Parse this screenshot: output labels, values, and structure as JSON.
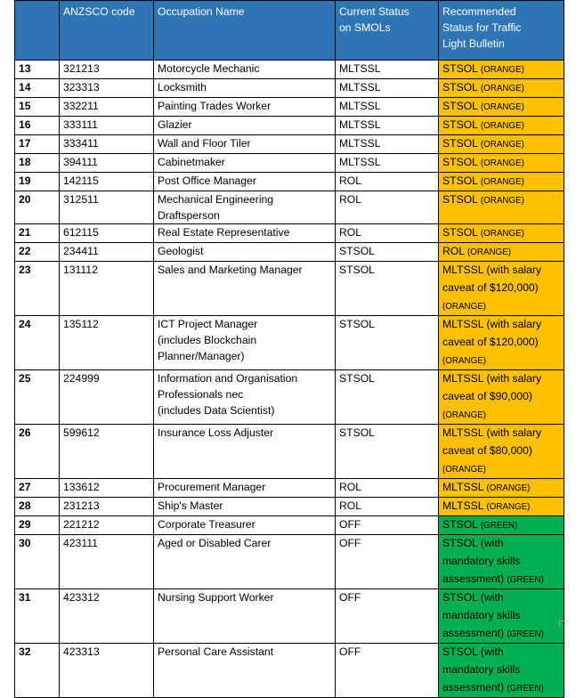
{
  "headers": {
    "num": "",
    "code": "ANZSCO code",
    "name": "Occupation Name",
    "current": [
      "Current Status",
      "on SMOLs"
    ],
    "recommended": [
      "Recommended",
      "Status for Traffic",
      "Light Bulletin"
    ]
  },
  "colors": {
    "header_bg": "#2e75b6",
    "orange": "#ffc000",
    "green": "#00b050"
  },
  "rows": [
    {
      "num": "13",
      "code": "321213",
      "name": [
        "Motorcycle Mechanic"
      ],
      "current": "MLTSSL",
      "rec": [
        [
          "STSOL ",
          "(ORANGE)"
        ]
      ],
      "color": "orange"
    },
    {
      "num": "14",
      "code": "323313",
      "name": [
        "Locksmith"
      ],
      "current": "MLTSSL",
      "rec": [
        [
          "STSOL ",
          "(ORANGE)"
        ]
      ],
      "color": "orange"
    },
    {
      "num": "15",
      "code": "332211",
      "name": [
        "Painting Trades Worker"
      ],
      "current": "MLTSSL",
      "rec": [
        [
          "STSOL ",
          "(ORANGE)"
        ]
      ],
      "color": "orange"
    },
    {
      "num": "16",
      "code": "333111",
      "name": [
        "Glazier"
      ],
      "current": "MLTSSL",
      "rec": [
        [
          "STSOL ",
          "(ORANGE)"
        ]
      ],
      "color": "orange"
    },
    {
      "num": "17",
      "code": "333411",
      "name": [
        "Wall and Floor Tiler"
      ],
      "current": "MLTSSL",
      "rec": [
        [
          "STSOL ",
          "(ORANGE)"
        ]
      ],
      "color": "orange"
    },
    {
      "num": "18",
      "code": "394111",
      "name": [
        "Cabinetmaker"
      ],
      "current": "MLTSSL",
      "rec": [
        [
          "STSOL ",
          "(ORANGE)"
        ]
      ],
      "color": "orange"
    },
    {
      "num": "19",
      "code": "142115",
      "name": [
        "Post Office Manager"
      ],
      "current": "ROL",
      "rec": [
        [
          "STSOL ",
          "(ORANGE)"
        ]
      ],
      "color": "orange"
    },
    {
      "num": "20",
      "code": "312511",
      "name": [
        "Mechanical Engineering",
        "Draftsperson"
      ],
      "current": "ROL",
      "rec": [
        [
          "STSOL ",
          "(ORANGE)"
        ]
      ],
      "color": "orange"
    },
    {
      "num": "21",
      "code": "612115",
      "name": [
        "Real Estate Representative"
      ],
      "current": "ROL",
      "rec": [
        [
          "STSOL ",
          "(ORANGE)"
        ]
      ],
      "color": "orange"
    },
    {
      "num": "22",
      "code": "234411",
      "name": [
        "Geologist"
      ],
      "current": "STSOL",
      "rec": [
        [
          "ROL ",
          "(ORANGE)"
        ]
      ],
      "color": "orange"
    },
    {
      "num": "23",
      "code": "131112",
      "name": [
        "Sales and Marketing Manager"
      ],
      "current": "STSOL",
      "rec": [
        [
          "MLTSSL (with salary",
          ""
        ],
        [
          "caveat of $120,000)",
          ""
        ],
        [
          "",
          "(ORANGE)"
        ]
      ],
      "color": "orange"
    },
    {
      "num": "24",
      "code": "135112",
      "name": [
        "ICT Project Manager",
        "(includes Blockchain",
        "Planner/Manager)"
      ],
      "current": "STSOL",
      "rec": [
        [
          "MLTSSL (with salary",
          ""
        ],
        [
          "caveat of $120,000)",
          ""
        ],
        [
          "",
          "(ORANGE)"
        ]
      ],
      "color": "orange"
    },
    {
      "num": "25",
      "code": "224999",
      "name": [
        "Information and Organisation",
        "Professionals nec",
        "(includes Data Scientist)"
      ],
      "current": "STSOL",
      "rec": [
        [
          "MLTSSL (with salary",
          ""
        ],
        [
          "caveat of $90,000)",
          ""
        ],
        [
          "",
          "(ORANGE)"
        ]
      ],
      "color": "orange"
    },
    {
      "num": "26",
      "code": "599612",
      "name": [
        "Insurance Loss Adjuster"
      ],
      "current": "STSOL",
      "rec": [
        [
          "MLTSSL (with salary",
          ""
        ],
        [
          "caveat of $80,000)",
          ""
        ],
        [
          "",
          "(ORANGE)"
        ]
      ],
      "color": "orange"
    },
    {
      "num": "27",
      "code": "133612",
      "name": [
        "Procurement Manager"
      ],
      "current": "ROL",
      "rec": [
        [
          "MLTSSL ",
          "(ORANGE)"
        ]
      ],
      "color": "orange"
    },
    {
      "num": "28",
      "code": "231213",
      "name": [
        "Ship's Master"
      ],
      "current": "ROL",
      "rec": [
        [
          "MLTSSL ",
          "(ORANGE)"
        ]
      ],
      "color": "orange"
    },
    {
      "num": "29",
      "code": "221212",
      "name": [
        "Corporate Treasurer"
      ],
      "current": "OFF",
      "rec": [
        [
          "STSOL ",
          "(GREEN)"
        ]
      ],
      "color": "green"
    },
    {
      "num": "30",
      "code": "423111",
      "name": [
        "Aged or Disabled Carer"
      ],
      "current": "OFF",
      "rec": [
        [
          "STSOL (with",
          ""
        ],
        [
          "mandatory skills",
          ""
        ],
        [
          "assessment) ",
          "(GREEN)"
        ]
      ],
      "color": "green"
    },
    {
      "num": "31",
      "code": "423312",
      "name": [
        "Nursing Support Worker"
      ],
      "current": "OFF",
      "rec": [
        [
          "STSOL (with",
          ""
        ],
        [
          "mandatory skills",
          ""
        ],
        [
          "assessment) ",
          "(GREEN)"
        ]
      ],
      "color": "green"
    },
    {
      "num": "32",
      "code": "423313",
      "name": [
        "Personal Care Assistant"
      ],
      "current": "OFF",
      "rec": [
        [
          "STSOL (with",
          ""
        ],
        [
          "mandatory skills",
          ""
        ],
        [
          "assessment) ",
          "(GREEN)"
        ]
      ],
      "color": "green"
    }
  ]
}
